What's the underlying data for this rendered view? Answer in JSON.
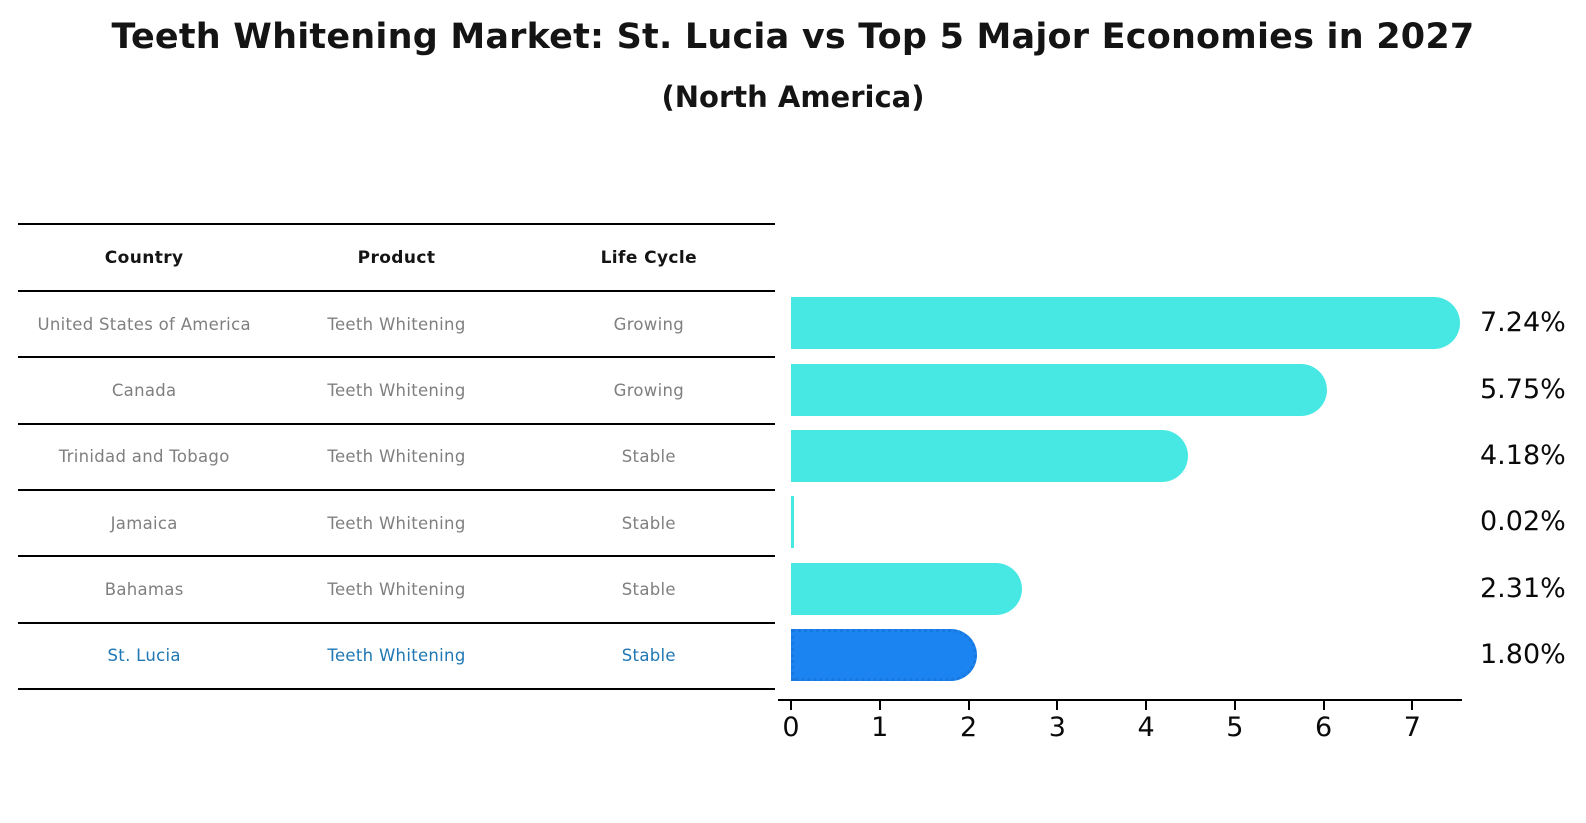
{
  "title": "Teeth Whitening Market: St. Lucia vs Top 5 Major Economies in 2027",
  "subtitle": "(North America)",
  "colors": {
    "bar_cyan": "#47E8E4",
    "bar_blue": "#1B84F0",
    "bar_blue_border": "#1778E0",
    "highlight_text": "#1f77b4",
    "table_text_gray": "#7f7f7f",
    "axis_black": "#000000"
  },
  "table": {
    "headers": [
      "Country",
      "Product",
      "Life Cycle"
    ],
    "rows": [
      {
        "country": "United States of America",
        "product": "Teeth Whitening",
        "life_cycle": "Growing",
        "highlight": false
      },
      {
        "country": "Canada",
        "product": "Teeth Whitening",
        "life_cycle": "Growing",
        "highlight": false
      },
      {
        "country": "Trinidad and Tobago",
        "product": "Teeth Whitening",
        "life_cycle": "Stable",
        "highlight": false
      },
      {
        "country": "Jamaica",
        "product": "Teeth Whitening",
        "life_cycle": "Stable",
        "highlight": false
      },
      {
        "country": "Bahamas",
        "product": "Teeth Whitening",
        "life_cycle": "Stable",
        "highlight": false
      },
      {
        "country": "St. Lucia",
        "product": "Teeth Whitening",
        "life_cycle": "Stable",
        "highlight": true
      }
    ]
  },
  "chart_data": {
    "type": "bar",
    "orientation": "horizontal",
    "title": "Teeth Whitening Market: St. Lucia vs Top 5 Major Economies in 2027",
    "subtitle": "(North America)",
    "categories": [
      "United States of America",
      "Canada",
      "Trinidad and Tobago",
      "Jamaica",
      "Bahamas",
      "St. Lucia"
    ],
    "values": [
      7.24,
      5.75,
      4.18,
      0.02,
      2.31,
      1.8
    ],
    "value_labels": [
      "7.24%",
      "5.75%",
      "4.18%",
      "0.02%",
      "2.31%",
      "1.80%"
    ],
    "highlight_index": 5,
    "xlabel": "",
    "ylabel": "",
    "xlim": [
      0,
      7.65
    ],
    "xticks": [
      0,
      1,
      2,
      3,
      4,
      5,
      6,
      7
    ],
    "grid": false,
    "legend": false
  }
}
